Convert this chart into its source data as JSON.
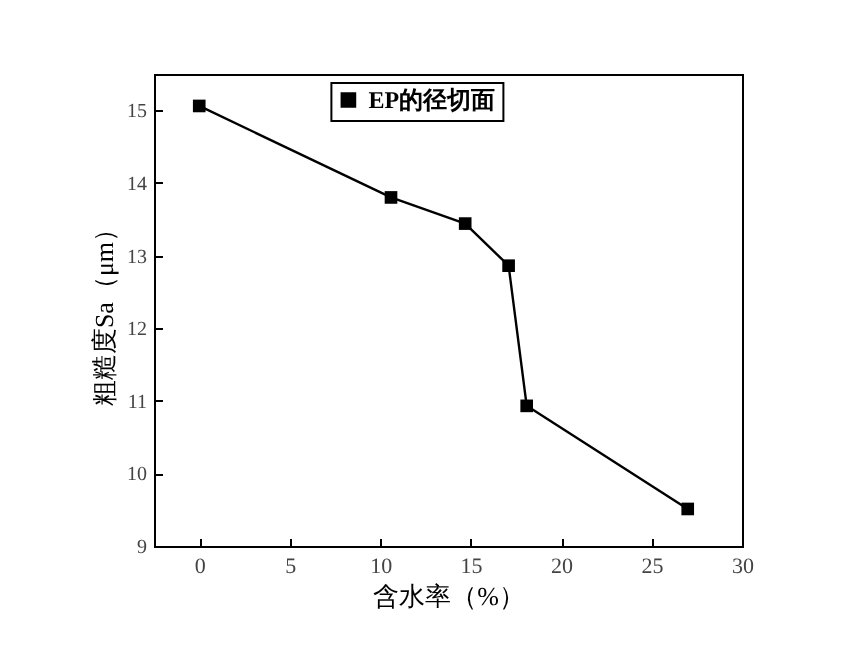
{
  "chart_data": {
    "type": "line",
    "xlabel": "含水率（%）",
    "ylabel": "粗糙度Sa（μm）",
    "x": [
      0,
      10.6,
      14.7,
      17.1,
      18.1,
      27.0
    ],
    "series": [
      {
        "name": "EP的径切面",
        "color": "#000000",
        "values": [
          15.06,
          13.8,
          13.44,
          12.86,
          10.93,
          9.51
        ]
      }
    ],
    "xlim": [
      -2.5,
      30
    ],
    "xticks": [
      0,
      5,
      10,
      15,
      20,
      25,
      30
    ],
    "ylim": [
      9,
      15.5
    ],
    "yticks": [
      9,
      10,
      11,
      12,
      13,
      14,
      15
    ],
    "marker": "square",
    "line_style": "solid",
    "legend": "top",
    "grid": false
  }
}
